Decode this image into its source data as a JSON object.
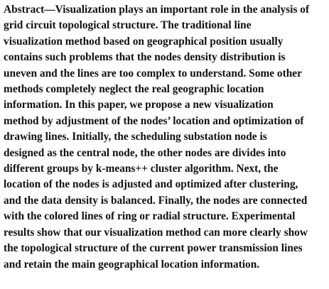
{
  "abstract": {
    "lines": [
      "Abstract—Visualization plays an important role in the analysis of",
      "grid circuit topological structure. The traditional line",
      "visualization method based on geographical position usually",
      "contains such problems that the nodes density distribution is",
      "uneven and the lines are too complex to understand. Some other",
      "methods completely neglect the real geographic location",
      "information. In this paper, we propose a new visualization",
      "method by adjustment of the nodes’ location and optimization of",
      "drawing lines. Initially, the scheduling substation node is",
      "designed as the central node, the other nodes are divides into",
      "different groups by k-means++ cluster algorithm. Next, the",
      "location of the nodes is adjusted and optimized after clustering,",
      "and the data density is balanced. Finally, the nodes are connected",
      "with the colored lines of ring or radial structure. Experimental",
      "results show that our visualization method can more clearly show",
      "the topological structure of the current power transmission lines",
      "and retain the main geographical location information."
    ]
  }
}
